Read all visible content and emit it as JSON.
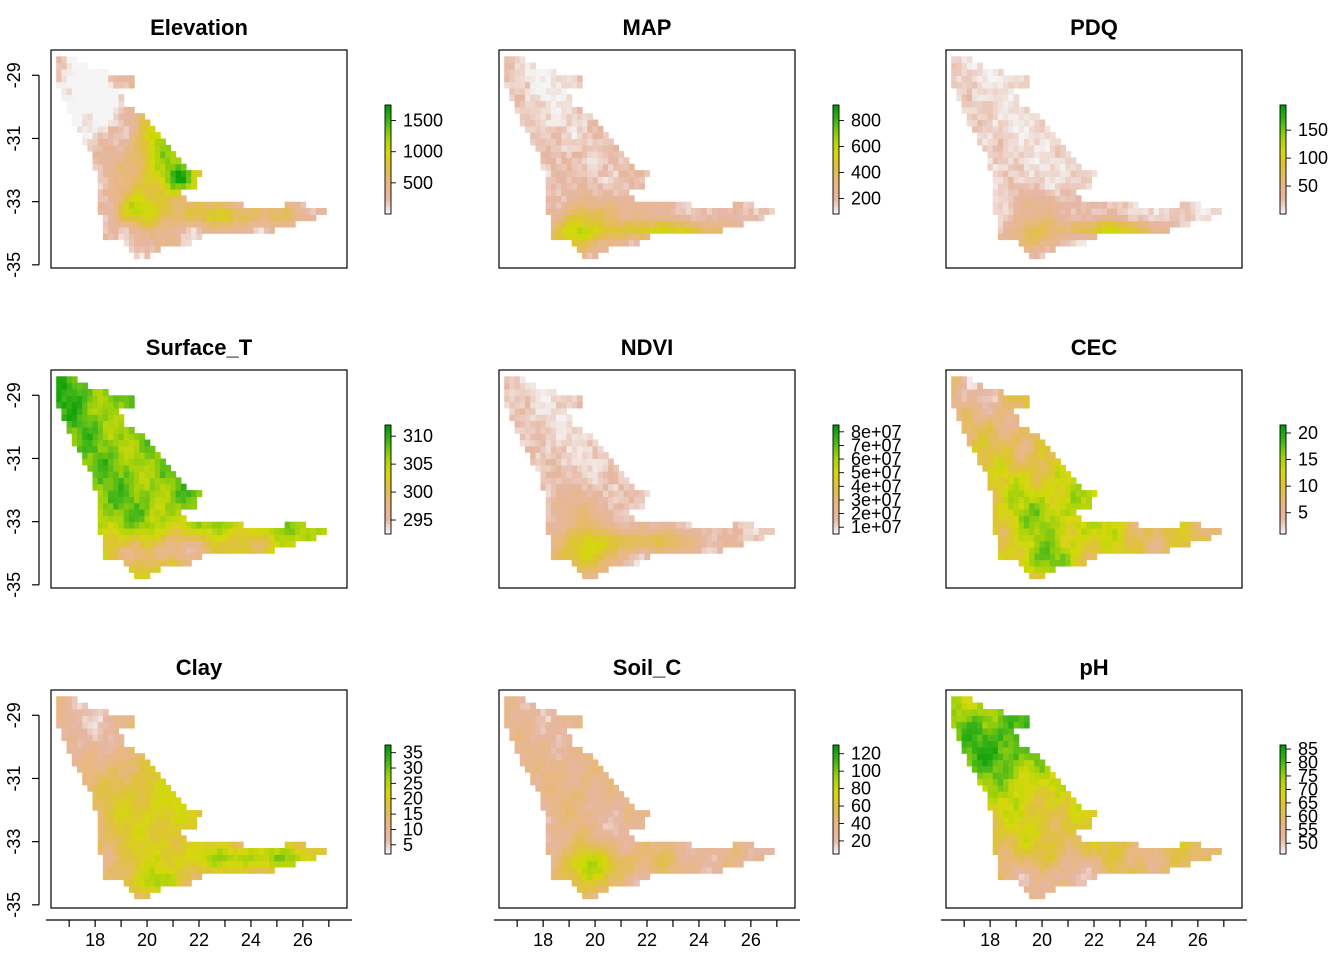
{
  "chart_data": {
    "type": "heatmap",
    "x_axis": {
      "ticks": [
        18,
        20,
        22,
        24,
        26
      ],
      "labels": [
        "18",
        "20",
        "22",
        "24",
        "26"
      ],
      "range": [
        16.3,
        27.7
      ]
    },
    "y_axis": {
      "ticks": [
        -29,
        -31,
        -33,
        -35
      ],
      "labels": [
        "-29",
        "-31",
        "-33",
        "-35"
      ],
      "range": [
        -35.1,
        -28.2
      ]
    },
    "palette": [
      "#f5f5f5",
      "#e6b7a4",
      "#e8b87c",
      "#dfc23b",
      "#d4d90a",
      "#9fd10c",
      "#3fb51b",
      "#009a00"
    ],
    "panels": [
      {
        "title": "Elevation",
        "legend": {
          "ticks": [
            500,
            1000,
            1500
          ],
          "labels": [
            "500",
            "1000",
            "1500"
          ],
          "range": [
            0,
            1750
          ]
        }
      },
      {
        "title": "MAP",
        "legend": {
          "ticks": [
            200,
            400,
            600,
            800
          ],
          "labels": [
            "200",
            "400",
            "600",
            "800"
          ],
          "range": [
            80,
            920
          ]
        }
      },
      {
        "title": "PDQ",
        "legend": {
          "ticks": [
            50,
            100,
            150
          ],
          "labels": [
            "50",
            "100",
            "150"
          ],
          "range": [
            0,
            195
          ]
        }
      },
      {
        "title": "Surface_T",
        "legend": {
          "ticks": [
            295,
            300,
            305,
            310
          ],
          "labels": [
            "295",
            "300",
            "305",
            "310"
          ],
          "range": [
            292.5,
            312
          ]
        }
      },
      {
        "title": "NDVI",
        "legend": {
          "ticks": [
            10000000,
            20000000,
            30000000,
            40000000,
            50000000,
            60000000,
            70000000,
            80000000
          ],
          "labels": [
            "1e+07",
            "2e+07",
            "3e+07",
            "4e+07",
            "5e+07",
            "6e+07",
            "7e+07",
            "8e+07"
          ],
          "range": [
            5000000,
            85000000
          ]
        }
      },
      {
        "title": "CEC",
        "legend": {
          "ticks": [
            5,
            10,
            15,
            20
          ],
          "labels": [
            "5",
            "10",
            "15",
            "20"
          ],
          "range": [
            1,
            21.5
          ]
        }
      },
      {
        "title": "Clay",
        "legend": {
          "ticks": [
            5,
            10,
            15,
            20,
            25,
            30,
            35
          ],
          "labels": [
            "5",
            "10",
            "15",
            "20",
            "25",
            "30",
            "35"
          ],
          "range": [
            2,
            37.5
          ]
        }
      },
      {
        "title": "Soil_C",
        "legend": {
          "ticks": [
            20,
            40,
            60,
            80,
            100,
            120
          ],
          "labels": [
            "20",
            "40",
            "60",
            "80",
            "100",
            "120"
          ],
          "range": [
            5,
            130
          ]
        }
      },
      {
        "title": "pH",
        "legend": {
          "ticks": [
            50,
            55,
            60,
            65,
            70,
            75,
            80,
            85
          ],
          "labels": [
            "50",
            "55",
            "60",
            "65",
            "70",
            "75",
            "80",
            "85"
          ],
          "range": [
            46,
            86.5
          ]
        }
      }
    ]
  }
}
